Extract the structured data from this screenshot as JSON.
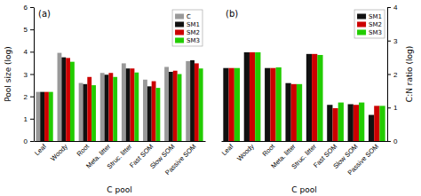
{
  "chart_data": [
    {
      "type": "bar",
      "xlabel": "C pool",
      "ylabel": "Pool size (log)",
      "annotations": [
        "(a)"
      ],
      "categories": [
        "Leaf",
        "Woody",
        "Root",
        "Meta. litter",
        "Struc. litter",
        "Fast SOM",
        "Slow SOM",
        "Passive SOM"
      ],
      "series": [
        {
          "name": "C",
          "color": "#999999",
          "values": [
            2.2,
            3.95,
            2.6,
            3.05,
            3.48,
            2.75,
            3.32,
            3.58
          ]
        },
        {
          "name": "SM1",
          "color": "#111111",
          "values": [
            2.2,
            3.75,
            2.55,
            2.97,
            3.25,
            2.45,
            3.1,
            3.62
          ]
        },
        {
          "name": "SM2",
          "color": "#cc0000",
          "values": [
            2.2,
            3.72,
            2.87,
            3.05,
            3.25,
            2.68,
            3.15,
            3.48
          ]
        },
        {
          "name": "SM3",
          "color": "#22cc00",
          "values": [
            2.2,
            3.55,
            2.5,
            2.87,
            3.07,
            2.38,
            3.0,
            3.25
          ]
        }
      ],
      "ylim": [
        0,
        6
      ],
      "yticks": [
        0,
        1,
        2,
        3,
        4,
        5,
        6
      ],
      "legend": "upper-right"
    },
    {
      "type": "bar",
      "xlabel": "C pool",
      "ylabel": "C:N ratio (log)",
      "annotations": [
        "(b)"
      ],
      "categories": [
        "Leaf",
        "Woody",
        "Root",
        "Meta. litter",
        "Struc. litter",
        "Fast SOM",
        "Slow SOM",
        "Passive SOM"
      ],
      "series": [
        {
          "name": "SM1",
          "color": "#111111",
          "values": [
            2.18,
            2.65,
            2.18,
            1.73,
            2.6,
            1.08,
            1.1,
            0.78
          ]
        },
        {
          "name": "SM2",
          "color": "#cc0000",
          "values": [
            2.18,
            2.65,
            2.18,
            1.7,
            2.6,
            0.98,
            1.08,
            1.05
          ]
        },
        {
          "name": "SM3",
          "color": "#22cc00",
          "values": [
            2.18,
            2.65,
            2.2,
            1.7,
            2.57,
            1.15,
            1.15,
            1.05
          ]
        }
      ],
      "ylim": [
        0,
        4
      ],
      "yticks": [
        0,
        1,
        2,
        3,
        4
      ],
      "legend": "upper-right"
    }
  ]
}
